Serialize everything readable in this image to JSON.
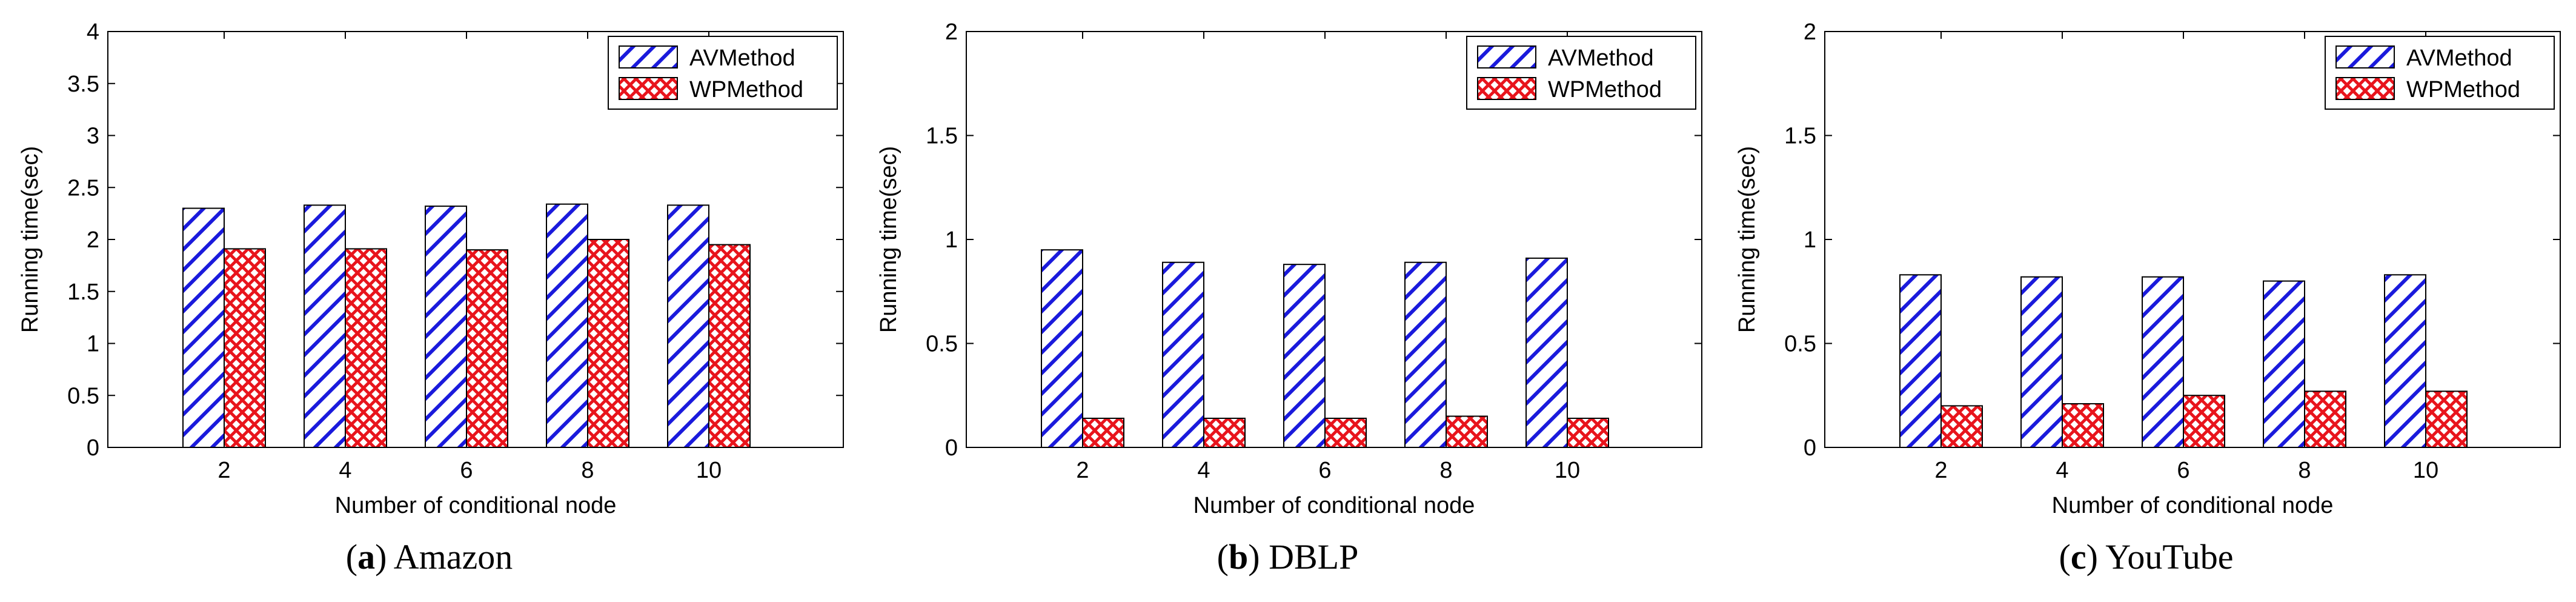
{
  "colors": {
    "av": "#1a1adc",
    "wp": "#e8141c"
  },
  "legend": {
    "series_a": "AVMethod",
    "series_b": "WPMethod"
  },
  "chart_data": [
    {
      "type": "bar",
      "caption_tag": "a",
      "caption_text": "Amazon",
      "xlabel": "Number of conditional node",
      "ylabel": "Running time(sec)",
      "categories": [
        "2",
        "4",
        "6",
        "8",
        "10"
      ],
      "ylim": [
        0,
        4
      ],
      "yticks": [
        "0",
        "0.5",
        "1",
        "1.5",
        "2",
        "2.5",
        "3",
        "3.5",
        "4"
      ],
      "series": [
        {
          "name": "AVMethod",
          "values": [
            2.3,
            2.33,
            2.32,
            2.34,
            2.33
          ]
        },
        {
          "name": "WPMethod",
          "values": [
            1.91,
            1.91,
            1.9,
            2.0,
            1.95
          ]
        }
      ]
    },
    {
      "type": "bar",
      "caption_tag": "b",
      "caption_text": "DBLP",
      "xlabel": "Number of conditional node",
      "ylabel": "Running time(sec)",
      "categories": [
        "2",
        "4",
        "6",
        "8",
        "10"
      ],
      "ylim": [
        0,
        2
      ],
      "yticks": [
        "0",
        "0.5",
        "1",
        "1.5",
        "2"
      ],
      "series": [
        {
          "name": "AVMethod",
          "values": [
            0.95,
            0.89,
            0.88,
            0.89,
            0.91
          ]
        },
        {
          "name": "WPMethod",
          "values": [
            0.14,
            0.14,
            0.14,
            0.15,
            0.14
          ]
        }
      ]
    },
    {
      "type": "bar",
      "caption_tag": "c",
      "caption_text": "YouTube",
      "xlabel": "Number of conditional node",
      "ylabel": "Running time(sec)",
      "categories": [
        "2",
        "4",
        "6",
        "8",
        "10"
      ],
      "ylim": [
        0,
        2
      ],
      "yticks": [
        "0",
        "0.5",
        "1",
        "1.5",
        "2"
      ],
      "series": [
        {
          "name": "AVMethod",
          "values": [
            0.83,
            0.82,
            0.82,
            0.8,
            0.83
          ]
        },
        {
          "name": "WPMethod",
          "values": [
            0.2,
            0.21,
            0.25,
            0.27,
            0.27
          ]
        }
      ]
    }
  ]
}
